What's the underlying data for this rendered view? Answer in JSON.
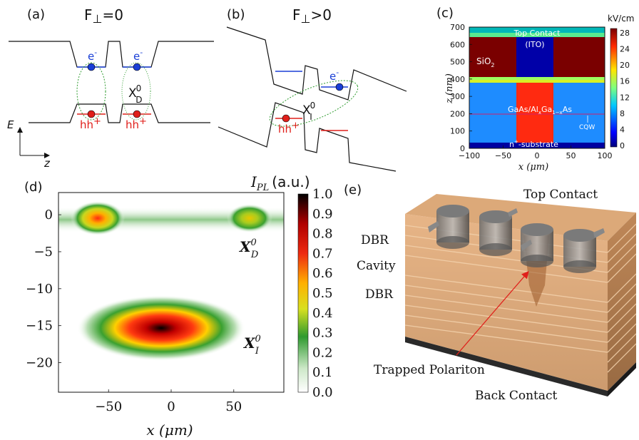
{
  "panels": {
    "a": {
      "label": "(a)",
      "field_F": "F",
      "field_perp": "⊥",
      "field_cond": "=0",
      "electron": "e",
      "electron_sup": "-",
      "hole": "hh",
      "hole_sup": "+",
      "exciton_X": "X",
      "exciton_sup": "0",
      "exciton_sub": "D",
      "axis_e": "E",
      "axis_z": "z"
    },
    "b": {
      "label": "(b)",
      "field_F": "F",
      "field_perp": "⊥",
      "field_cond": ">0",
      "electron": "e",
      "electron_sup": "-",
      "hole": "hh",
      "hole_sup": "+",
      "exciton_X": "X",
      "exciton_sup": "0",
      "exciton_sub": "I"
    },
    "c": {
      "label": "(c)",
      "colorbar_title": "kV/cm",
      "colorbar_ticks": [
        "28",
        "24",
        "20",
        "16",
        "12",
        "8",
        "4",
        "0"
      ],
      "y_ticks": [
        "700",
        "600",
        "500",
        "400",
        "300",
        "200",
        "100",
        "0"
      ],
      "x_ticks": [
        "−100",
        "−50",
        "0",
        "50",
        "100"
      ],
      "ylabel": "z (nm)",
      "xlabel": "x (μm)",
      "top_contact": "Top Contact",
      "ito": "(ITO)",
      "sio2": "SiO",
      "sio2_sub": "2",
      "gaas": "GaAs/Al",
      "gaas_x": "x",
      "gaas_ga": "Ga",
      "gaas_1x": "1−x",
      "gaas_as": "As",
      "cqw": "CQW",
      "substrate": "n",
      "substrate_sup": "+",
      "substrate_rest": "-substrate"
    },
    "d": {
      "label": "(d)",
      "colorbar_title_I": "I",
      "colorbar_title_sub": "PL",
      "colorbar_title_unit": "(a.u.)",
      "colorbar_ticks": [
        "1.0",
        "0.9",
        "0.8",
        "0.7",
        "0.6",
        "0.5",
        "0.4",
        "0.3",
        "0.2",
        "0.1",
        "0.0"
      ],
      "y_ticks": [
        "0",
        "−5",
        "−10",
        "−15",
        "−20"
      ],
      "x_ticks": [
        "−50",
        "0",
        "50"
      ],
      "xlabel": "x (μm)",
      "xd_X": "X",
      "xd_sup": "0",
      "xd_sub": "D",
      "xi_X": "X",
      "xi_sup": "0",
      "xi_sub": "I"
    },
    "e": {
      "label": "(e)",
      "top_contact": "Top Contact",
      "dbr_top": "DBR",
      "cavity": "Cavity",
      "dbr_bottom": "DBR",
      "trapped_polariton": "Trapped Polariton",
      "back_contact": "Back Contact"
    }
  },
  "colors": {
    "electron": "#1a3fd6",
    "hole": "#e0201b",
    "band_line": "#111111",
    "exciton_ring": "#2e9b2e",
    "device_body": "#c98a4e"
  },
  "chart_data": [
    {
      "type": "heatmap",
      "panel": "c",
      "xlabel": "x (μm)",
      "ylabel": "z (nm)",
      "xlim": [
        -100,
        100
      ],
      "ylim": [
        0,
        700
      ],
      "colorbar_label": "kV/cm",
      "colorbar_range": [
        0,
        28
      ],
      "regions": [
        {
          "name": "Top Contact (ITO)",
          "z": [
            660,
            700
          ],
          "field": 10
        },
        {
          "name": "SiO2",
          "z": [
            420,
            660
          ],
          "x_outside": [
            -25,
            25
          ],
          "field": 28
        },
        {
          "name": "GaAs/AlxGa1-xAs",
          "z": [
            30,
            420
          ],
          "x_inside": [
            -25,
            25
          ],
          "field": 24
        },
        {
          "name": "GaAs/AlxGa1-xAs",
          "z": [
            30,
            420
          ],
          "x_outside": [
            -25,
            25
          ],
          "field": 6
        },
        {
          "name": "n+-substrate",
          "z": [
            0,
            30
          ],
          "field": 0
        }
      ],
      "cqw_z": 200
    },
    {
      "type": "heatmap",
      "panel": "d",
      "xlabel": "x (μm)",
      "ylabel": "",
      "xlim": [
        -90,
        90
      ],
      "ylim": [
        -24,
        3
      ],
      "colorbar_label": "I_PL (a.u.)",
      "colorbar_range": [
        0,
        1
      ],
      "peaks": [
        {
          "name": "X_D^0",
          "x": -58,
          "y": 0,
          "intensity": 0.7
        },
        {
          "name": "X_D^0",
          "x": 62,
          "y": 0,
          "intensity": 0.45
        },
        {
          "name": "X_D^0 band",
          "x": 0,
          "y": 0,
          "intensity": 0.15
        },
        {
          "name": "X_I^0",
          "x": -8,
          "y": -15,
          "intensity": 1.0
        }
      ]
    }
  ]
}
